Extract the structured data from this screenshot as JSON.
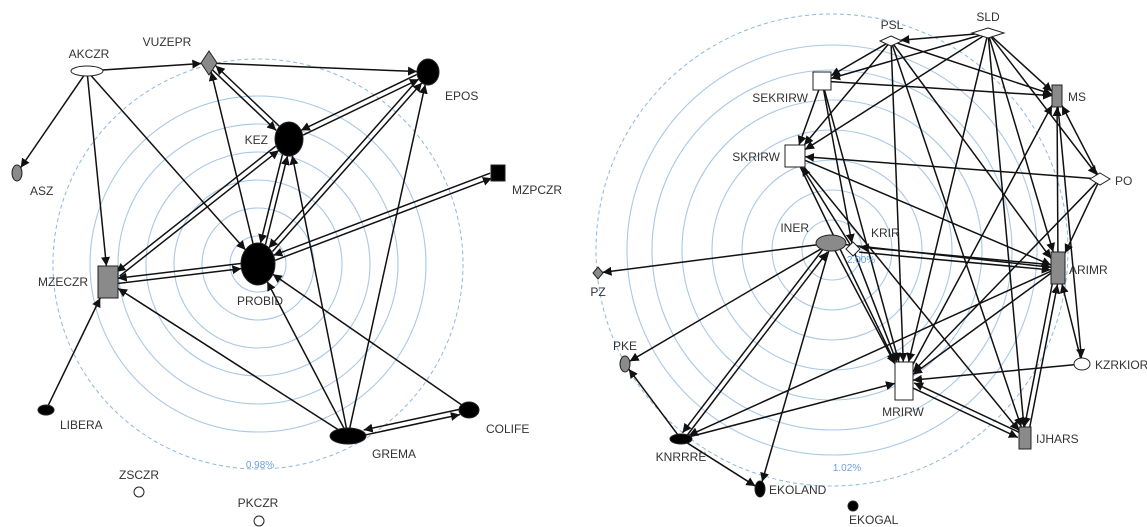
{
  "colors": {
    "ring": "#a9c8e6",
    "ring_dashed": "#8cb8e2",
    "edge": "#111111",
    "black": "#000000",
    "gray": "#8a8a8a",
    "white": "#ffffff",
    "label": "#333333",
    "percent": "#6a9fd6"
  },
  "networks": [
    {
      "id": "left",
      "percent_label": "0.98%",
      "nodes": [
        {
          "id": "PROBID",
          "label": "PROBID",
          "shape": "ellipse",
          "fill": "black"
        },
        {
          "id": "KEZ",
          "label": "KEZ",
          "shape": "ellipse",
          "fill": "black"
        },
        {
          "id": "EPOS",
          "label": "EPOS",
          "shape": "ellipse",
          "fill": "black"
        },
        {
          "id": "VUZEPR",
          "label": "VUZEPR",
          "shape": "diamond",
          "fill": "gray"
        },
        {
          "id": "AKCZR",
          "label": "AKCZR",
          "shape": "ellipse",
          "fill": "white"
        },
        {
          "id": "ASZ",
          "label": "ASZ",
          "shape": "ellipse",
          "fill": "gray"
        },
        {
          "id": "MZECZR",
          "label": "MZECZR",
          "shape": "rect",
          "fill": "gray"
        },
        {
          "id": "MZPCZR",
          "label": "MZPCZR",
          "shape": "rect",
          "fill": "black"
        },
        {
          "id": "LIBERA",
          "label": "LIBERA",
          "shape": "ellipse",
          "fill": "black"
        },
        {
          "id": "GREMA",
          "label": "GREMA",
          "shape": "ellipse",
          "fill": "black"
        },
        {
          "id": "COLIFE",
          "label": "COLIFE",
          "shape": "ellipse",
          "fill": "black"
        },
        {
          "id": "ZSCZR",
          "label": "ZSCZR",
          "shape": "circle",
          "fill": "white"
        },
        {
          "id": "PKCZR",
          "label": "PKCZR",
          "shape": "circle",
          "fill": "white"
        }
      ],
      "edges": [
        [
          "AKCZR",
          "VUZEPR"
        ],
        [
          "AKCZR",
          "ASZ"
        ],
        [
          "AKCZR",
          "MZECZR"
        ],
        [
          "AKCZR",
          "PROBID"
        ],
        [
          "VUZEPR",
          "EPOS"
        ],
        [
          "VUZEPR",
          "KEZ"
        ],
        [
          "KEZ",
          "VUZEPR"
        ],
        [
          "KEZ",
          "EPOS"
        ],
        [
          "EPOS",
          "KEZ"
        ],
        [
          "EPOS",
          "PROBID"
        ],
        [
          "PROBID",
          "EPOS"
        ],
        [
          "KEZ",
          "PROBID"
        ],
        [
          "PROBID",
          "KEZ"
        ],
        [
          "KEZ",
          "MZECZR"
        ],
        [
          "MZECZR",
          "KEZ"
        ],
        [
          "PROBID",
          "MZECZR"
        ],
        [
          "MZECZR",
          "PROBID"
        ],
        [
          "MZPCZR",
          "PROBID"
        ],
        [
          "PROBID",
          "MZPCZR"
        ],
        [
          "PROBID",
          "VUZEPR"
        ],
        [
          "LIBERA",
          "MZECZR"
        ],
        [
          "GREMA",
          "MZECZR"
        ],
        [
          "GREMA",
          "PROBID"
        ],
        [
          "GREMA",
          "KEZ"
        ],
        [
          "GREMA",
          "EPOS"
        ],
        [
          "GREMA",
          "COLIFE"
        ],
        [
          "COLIFE",
          "GREMA"
        ],
        [
          "COLIFE",
          "PROBID"
        ]
      ]
    },
    {
      "id": "right",
      "percent_label": "1.02%",
      "inner_percent_label": "2.00%",
      "nodes": [
        {
          "id": "PSL",
          "label": "PSL",
          "shape": "diamond",
          "fill": "white"
        },
        {
          "id": "SLD",
          "label": "SLD",
          "shape": "diamond",
          "fill": "white"
        },
        {
          "id": "SEKRIRW",
          "label": "SEKRIRW",
          "shape": "rect",
          "fill": "white"
        },
        {
          "id": "MS",
          "label": "MS",
          "shape": "rect",
          "fill": "gray"
        },
        {
          "id": "SKRIRW",
          "label": "SKRIRW",
          "shape": "rect",
          "fill": "white"
        },
        {
          "id": "PO",
          "label": "PO",
          "shape": "diamond",
          "fill": "white"
        },
        {
          "id": "INER",
          "label": "INER",
          "shape": "ellipse",
          "fill": "gray"
        },
        {
          "id": "KRIR",
          "label": "KRIR",
          "shape": "diamond",
          "fill": "white"
        },
        {
          "id": "ARIMR",
          "label": "ARIMR",
          "shape": "rect",
          "fill": "gray"
        },
        {
          "id": "PZ",
          "label": "PZ",
          "shape": "diamond",
          "fill": "gray"
        },
        {
          "id": "PKE",
          "label": "PKE",
          "shape": "ellipse",
          "fill": "gray"
        },
        {
          "id": "KZRKIOR",
          "label": "KZRKIOR",
          "shape": "ellipse",
          "fill": "white"
        },
        {
          "id": "MRIRW",
          "label": "MRIRW",
          "shape": "rect",
          "fill": "white"
        },
        {
          "id": "KNRRRE",
          "label": "KNRRRE",
          "shape": "ellipse",
          "fill": "black"
        },
        {
          "id": "IJHARS",
          "label": "IJHARS",
          "shape": "rect",
          "fill": "gray"
        },
        {
          "id": "EKOLAND",
          "label": "EKOLAND",
          "shape": "ellipse",
          "fill": "black"
        },
        {
          "id": "EKOGAL",
          "label": "EKOGAL",
          "shape": "circle",
          "fill": "black"
        }
      ],
      "edges": [
        [
          "SLD",
          "PSL"
        ],
        [
          "PSL",
          "SEKRIRW"
        ],
        [
          "SLD",
          "SEKRIRW"
        ],
        [
          "PSL",
          "SKRIRW"
        ],
        [
          "SLD",
          "SKRIRW"
        ],
        [
          "PSL",
          "MS"
        ],
        [
          "SLD",
          "MS"
        ],
        [
          "PSL",
          "ARIMR"
        ],
        [
          "SLD",
          "ARIMR"
        ],
        [
          "PSL",
          "MRIRW"
        ],
        [
          "SLD",
          "MRIRW"
        ],
        [
          "PSL",
          "IJHARS"
        ],
        [
          "SLD",
          "IJHARS"
        ],
        [
          "SLD",
          "PO"
        ],
        [
          "PO",
          "MS"
        ],
        [
          "PO",
          "SKRIRW"
        ],
        [
          "PO",
          "ARIMR"
        ],
        [
          "PO",
          "MRIRW"
        ],
        [
          "SEKRIRW",
          "MS"
        ],
        [
          "SEKRIRW",
          "SKRIRW"
        ],
        [
          "SEKRIRW",
          "MRIRW"
        ],
        [
          "SEKRIRW",
          "KRIR"
        ],
        [
          "SKRIRW",
          "ARIMR"
        ],
        [
          "SKRIRW",
          "MRIRW"
        ],
        [
          "SKRIRW",
          "IJHARS"
        ],
        [
          "KRIR",
          "SKRIRW"
        ],
        [
          "KRIR",
          "MRIRW"
        ],
        [
          "KRIR",
          "ARIMR"
        ],
        [
          "ARIMR",
          "KRIR"
        ],
        [
          "INER",
          "ARIMR"
        ],
        [
          "INER",
          "PZ"
        ],
        [
          "INER",
          "PKE"
        ],
        [
          "INER",
          "KNRRRE"
        ],
        [
          "INER",
          "EKOLAND"
        ],
        [
          "INER",
          "MRIRW"
        ],
        [
          "KNRRRE",
          "INER"
        ],
        [
          "KNRRRE",
          "PKE"
        ],
        [
          "KNRRRE",
          "EKOLAND"
        ],
        [
          "KNRRRE",
          "MRIRW"
        ],
        [
          "ARIMR",
          "MS"
        ],
        [
          "ARIMR",
          "MRIRW"
        ],
        [
          "ARIMR",
          "IJHARS"
        ],
        [
          "IJHARS",
          "ARIMR"
        ],
        [
          "MRIRW",
          "MS"
        ],
        [
          "MRIRW",
          "IJHARS"
        ],
        [
          "IJHARS",
          "MRIRW"
        ],
        [
          "KZRKIOR",
          "MRIRW"
        ],
        [
          "MS",
          "KZRKIOR"
        ],
        [
          "KZRKIOR",
          "ARIMR"
        ],
        [
          "ARIMR",
          "KNRRRE"
        ]
      ]
    }
  ]
}
